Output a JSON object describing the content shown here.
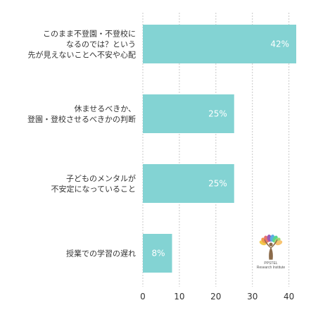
{
  "chart_data": {
    "type": "bar",
    "orientation": "horizontal",
    "categories": [
      [
        "このまま不登園・不登校に",
        "なるのでは？という",
        "先が見えないことへ不安や心配"
      ],
      [
        "休ませるべきか、",
        "登園・登校させるべきかの判断"
      ],
      [
        "子どものメンタルが",
        "不安定になっていること"
      ],
      [
        "授業での学習の遅れ"
      ]
    ],
    "values": [
      42,
      25,
      25,
      8
    ],
    "value_labels": [
      "42%",
      "25%",
      "25%",
      "8%"
    ],
    "x_ticks": [
      0,
      10,
      20,
      30,
      40
    ],
    "xlim": [
      0,
      42
    ],
    "grid": true,
    "bar_color": "#83d3d3",
    "grid_color": "#c8c8c8",
    "title": "",
    "xlabel": "",
    "ylabel": ""
  },
  "logo": {
    "name": "PPSTEL",
    "subtitle": "Research Institute",
    "leaf_colors": [
      "#f2c94c",
      "#f2994a",
      "#e57373",
      "#9b59b6",
      "#5dade2",
      "#58d68d",
      "#a3d977",
      "#f8c471"
    ]
  }
}
